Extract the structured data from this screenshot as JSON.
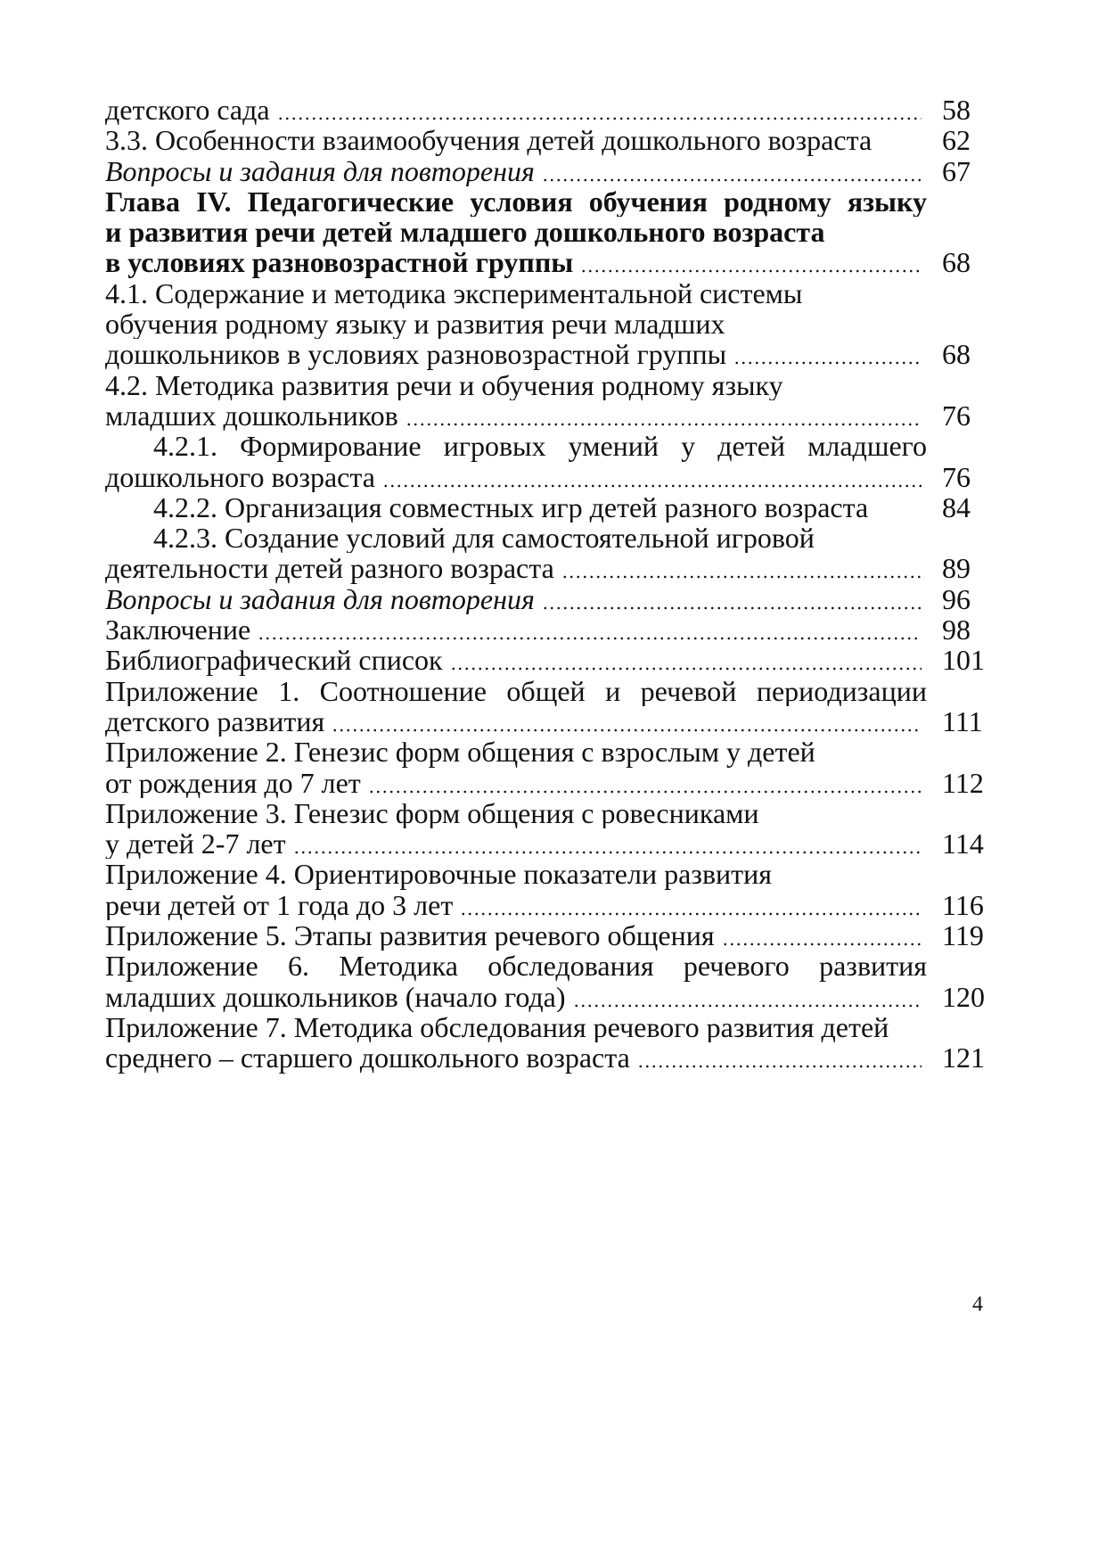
{
  "toc": [
    {
      "text": "детского сада",
      "page": "58",
      "leader": true
    },
    {
      "text": "3.3. Особенности взаимообучения детей дошкольного возраста",
      "page": "62"
    },
    {
      "text": "Вопросы и задания для повторения",
      "page": "67",
      "leader": true,
      "style": "italic"
    },
    {
      "text": "Глава IV. Педагогические условия обучения родному языку",
      "style": "bold",
      "justify": true
    },
    {
      "text": "и развития речи детей младшего дошкольного возраста",
      "style": "bold"
    },
    {
      "text": "в условиях разновозрастной группы",
      "page": "68",
      "leader": true,
      "style": "bold"
    },
    {
      "text": "4.1. Содержание и методика экспериментальной системы"
    },
    {
      "text": "обучения родному языку и развития речи младших"
    },
    {
      "text": "дошкольников в условиях разновозрастной группы",
      "page": "68",
      "leader": true
    },
    {
      "text": "4.2. Методика развития речи и обучения родному языку"
    },
    {
      "text": "младших дошкольников",
      "page": "76",
      "leader": true
    },
    {
      "text": "4.2.1. Формирование игровых умений у детей младшего",
      "indent": true,
      "justify": true
    },
    {
      "text": "дошкольного возраста",
      "page": "76",
      "leader": true
    },
    {
      "text": "4.2.2. Организация совместных игр детей разного возраста",
      "page": "84",
      "indent": true
    },
    {
      "text": "4.2.3. Создание условий для самостоятельной игровой",
      "indent": true
    },
    {
      "text": "деятельности детей разного возраста",
      "page": "89",
      "leader": true
    },
    {
      "text": "Вопросы и задания для повторения",
      "page": "96",
      "leader": true,
      "style": "italic"
    },
    {
      "text": "Заключение",
      "page": "98",
      "leader": true
    },
    {
      "text": "Библиографический список",
      "page": "101",
      "leader": true
    },
    {
      "text": "Приложение 1. Соотношение общей и речевой периодизации",
      "justify": true
    },
    {
      "text": "детского развития",
      "page": "111",
      "leader": true
    },
    {
      "text": "Приложение 2. Генезис форм общения с взрослым у детей"
    },
    {
      "text": "от рождения до 7 лет",
      "page": "112",
      "leader": true
    },
    {
      "text": "Приложение 3. Генезис форм общения с ровесниками"
    },
    {
      "text": "у детей 2-7 лет",
      "page": "114",
      "leader": true
    },
    {
      "text": "Приложение 4. Ориентировочные показатели развития"
    },
    {
      "text": "речи детей от 1 года до 3 лет",
      "page": "116",
      "leader": true
    },
    {
      "text": "Приложение 5. Этапы развития речевого общения",
      "page": "119",
      "leader": true
    },
    {
      "text": "Приложение 6. Методика обследования речевого развития",
      "justify": true
    },
    {
      "text": "младших дошкольников (начало года)",
      "page": "120",
      "leader": true
    },
    {
      "text": "Приложение 7. Методика обследования речевого развития детей"
    },
    {
      "text": "среднего – старшего дошкольного возраста",
      "page": "121",
      "leader": true
    }
  ],
  "page_number": "4"
}
